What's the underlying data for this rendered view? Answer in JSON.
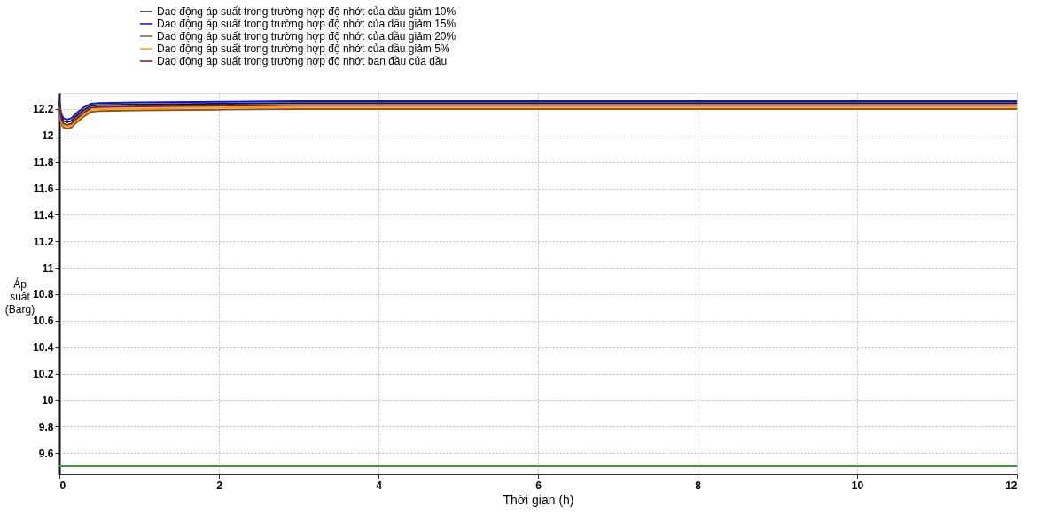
{
  "chart_data": {
    "type": "line",
    "xlabel": "Thời gian (h)",
    "ylabel": "Áp suất (Barg)",
    "x": [
      0,
      0.02,
      0.05,
      0.1,
      0.15,
      0.2,
      0.3,
      0.4,
      0.5,
      1,
      2,
      3,
      4,
      5,
      6,
      7,
      8,
      9,
      10,
      11,
      12
    ],
    "series": [
      {
        "name": "Dao động áp suất trong trường hợp độ nhớt của dầu giảm 10%",
        "color": "#1a1a1a",
        "values": [
          12.25,
          12.15,
          12.11,
          12.1,
          12.11,
          12.14,
          12.19,
          12.225,
          12.23,
          12.235,
          12.24,
          12.245,
          12.245,
          12.245,
          12.245,
          12.245,
          12.245,
          12.245,
          12.245,
          12.245,
          12.245
        ]
      },
      {
        "name": "Dao động áp suất trong trường hợp độ nhớt của dầu giảm 15%",
        "color": "#1010d0",
        "values": [
          12.26,
          12.17,
          12.13,
          12.12,
          12.13,
          12.16,
          12.21,
          12.24,
          12.245,
          12.25,
          12.255,
          12.26,
          12.26,
          12.26,
          12.26,
          12.26,
          12.26,
          12.26,
          12.26,
          12.26,
          12.26
        ]
      },
      {
        "name": "Dao động áp suất trong trường hợp độ nhớt của dầu giảm 20%",
        "color": "#8b5a1a",
        "values": [
          12.21,
          12.09,
          12.06,
          12.05,
          12.06,
          12.09,
          12.14,
          12.18,
          12.185,
          12.19,
          12.195,
          12.2,
          12.2,
          12.2,
          12.2,
          12.2,
          12.2,
          12.2,
          12.2,
          12.2,
          12.2
        ]
      },
      {
        "name": "Dao động áp suất trong trường hợp độ nhớt của dầu giảm 5%",
        "color": "#ff9a20",
        "values": [
          12.22,
          12.11,
          12.075,
          12.065,
          12.075,
          12.105,
          12.155,
          12.195,
          12.2,
          12.205,
          12.21,
          12.215,
          12.215,
          12.215,
          12.215,
          12.215,
          12.215,
          12.215,
          12.215,
          12.215,
          12.215
        ]
      },
      {
        "name": "Dao động áp suất trong trường hợp độ nhớt ban đầu của dầu",
        "color": "#7a2030",
        "values": [
          12.235,
          12.13,
          12.09,
          12.08,
          12.09,
          12.12,
          12.17,
          12.21,
          12.215,
          12.22,
          12.225,
          12.23,
          12.23,
          12.23,
          12.23,
          12.23,
          12.23,
          12.23,
          12.23,
          12.23,
          12.23
        ]
      }
    ],
    "xlim": [
      0,
      12
    ],
    "xticks": [
      0,
      2,
      4,
      6,
      8,
      10,
      12
    ],
    "ylim": [
      9.44,
      12.32
    ],
    "yticks": [
      9.6,
      9.8,
      10,
      10.2,
      10.4,
      10.6,
      10.8,
      11,
      11.2,
      11.4,
      11.6,
      11.8,
      12,
      12.2
    ],
    "ref_lines": [
      {
        "axis": "y",
        "value": 9.5,
        "color": "#3a9a3a"
      }
    ],
    "grid": true,
    "legend": "top left",
    "line_style": "solid",
    "marker": "none"
  }
}
